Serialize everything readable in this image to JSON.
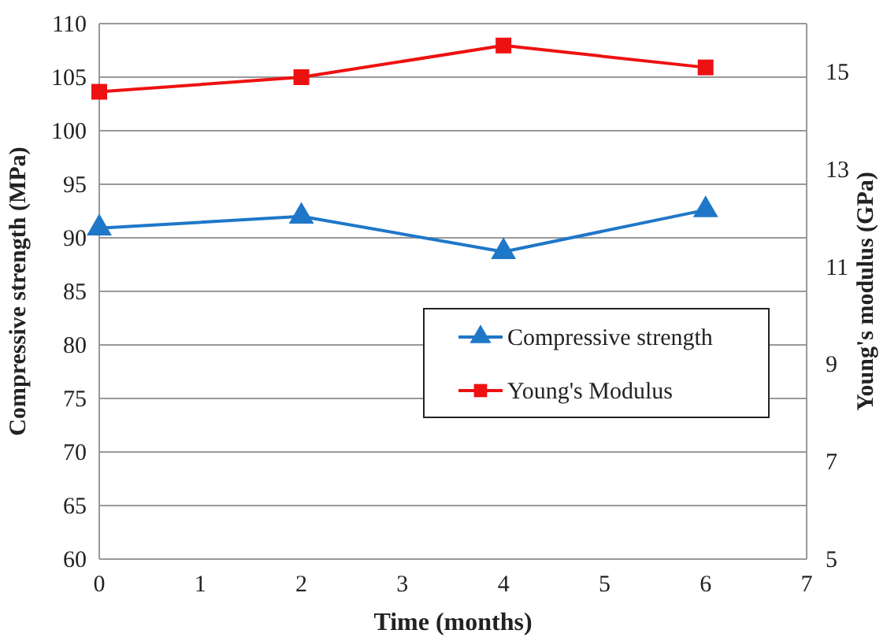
{
  "chart_data": {
    "type": "line",
    "xlabel": "Time (months)",
    "ylabel": "Compressive strength (MPa)",
    "y2label": "Young's modulus (GPa)",
    "x": [
      0,
      2,
      4,
      6
    ],
    "series": [
      {
        "name": "Compressive strength",
        "color": "#1f77c8",
        "values": [
          90.9,
          92.0,
          88.7,
          92.6
        ],
        "marker": "triangle"
      },
      {
        "name": "Young's Modulus",
        "color": "#ee1111",
        "values": [
          14.6,
          14.9,
          15.55,
          15.1
        ],
        "marker": "square",
        "axis": "y2"
      }
    ],
    "xlim": [
      0,
      7
    ],
    "xticks": [
      0,
      1,
      2,
      3,
      4,
      5,
      6,
      7
    ],
    "ylim": [
      60,
      110
    ],
    "yticks": [
      60,
      65,
      70,
      75,
      80,
      85,
      90,
      95,
      100,
      105,
      110
    ],
    "y2lim": [
      5,
      16
    ],
    "y2ticks": [
      5,
      7,
      9,
      11,
      13,
      15
    ],
    "grid": "y",
    "legend": "right",
    "line_style": "solid"
  }
}
